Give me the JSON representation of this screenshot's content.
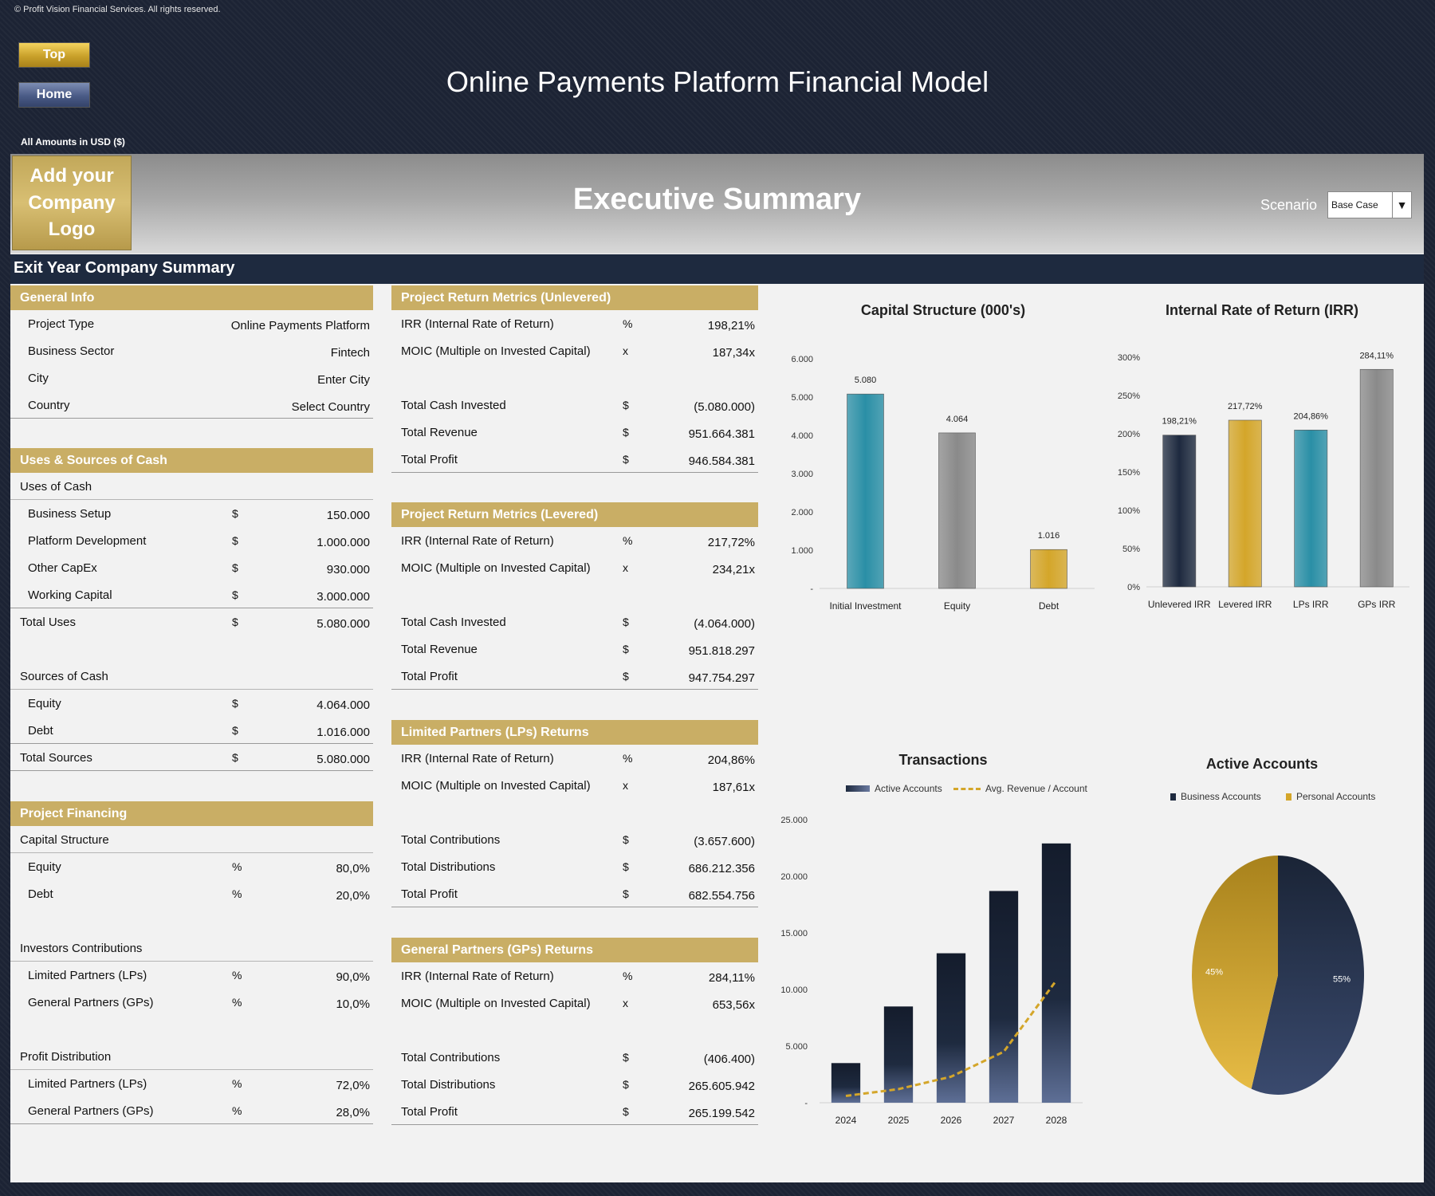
{
  "copyright": "© Profit Vision Financial Services. All rights reserved.",
  "nav": {
    "top_label": "Top",
    "home_label": "Home"
  },
  "title": "Online Payments Platform Financial Model",
  "amounts_note": "All Amounts in  USD ($)",
  "logo_text": "Add your Company Logo",
  "exec_title": "Executive Summary",
  "scenario": {
    "label": "Scenario",
    "value": "Base Case"
  },
  "exit_bar": "Exit Year Company Summary",
  "general_info": {
    "header": "General Info",
    "rows": [
      {
        "label": "Project Type",
        "value": "Online Payments Platform"
      },
      {
        "label": "Business Sector",
        "value": "Fintech"
      },
      {
        "label": "City",
        "value": "Enter City"
      },
      {
        "label": "Country",
        "value": "Select Country"
      }
    ]
  },
  "uses_sources": {
    "header": "Uses & Sources of Cash",
    "uses_title": "Uses of Cash",
    "uses": [
      {
        "label": "Business Setup",
        "unit": "$",
        "value": "150.000"
      },
      {
        "label": "Platform Development",
        "unit": "$",
        "value": "1.000.000"
      },
      {
        "label": "Other CapEx",
        "unit": "$",
        "value": "930.000"
      },
      {
        "label": "Working Capital",
        "unit": "$",
        "value": "3.000.000"
      }
    ],
    "total_uses": {
      "label": "Total Uses",
      "unit": "$",
      "value": "5.080.000"
    },
    "sources_title": "Sources of Cash",
    "sources": [
      {
        "label": "Equity",
        "unit": "$",
        "value": "4.064.000"
      },
      {
        "label": "Debt",
        "unit": "$",
        "value": "1.016.000"
      }
    ],
    "total_sources": {
      "label": "Total Sources",
      "unit": "$",
      "value": "5.080.000"
    }
  },
  "project_financing": {
    "header": "Project Financing",
    "cap_title": "Capital Structure",
    "cap": [
      {
        "label": "Equity",
        "unit": "%",
        "value": "80,0%"
      },
      {
        "label": "Debt",
        "unit": "%",
        "value": "20,0%"
      }
    ],
    "inv_title": "Investors Contributions",
    "inv": [
      {
        "label": "Limited Partners (LPs)",
        "unit": "%",
        "value": "90,0%"
      },
      {
        "label": "General Partners (GPs)",
        "unit": "%",
        "value": "10,0%"
      }
    ],
    "profit_title": "Profit Distribution",
    "profit": [
      {
        "label": "Limited Partners (LPs)",
        "unit": "%",
        "value": "72,0%"
      },
      {
        "label": "General Partners (GPs)",
        "unit": "%",
        "value": "28,0%"
      }
    ]
  },
  "unlevered": {
    "header": "Project Return Metrics (Unlevered)",
    "irr": {
      "label": "IRR (Internal Rate of Return)",
      "unit": "%",
      "value": "198,21%"
    },
    "moic": {
      "label": "MOIC (Multiple on Invested Capital)",
      "unit": "x",
      "value": "187,34x"
    },
    "r1": {
      "label": "Total Cash Invested",
      "unit": "$",
      "value": "(5.080.000)"
    },
    "r2": {
      "label": "Total Revenue",
      "unit": "$",
      "value": "951.664.381"
    },
    "r3": {
      "label": "Total Profit",
      "unit": "$",
      "value": "946.584.381"
    }
  },
  "levered": {
    "header": "Project Return Metrics (Levered)",
    "irr": {
      "label": "IRR (Internal Rate of Return)",
      "unit": "%",
      "value": "217,72%"
    },
    "moic": {
      "label": "MOIC (Multiple on Invested Capital)",
      "unit": "x",
      "value": "234,21x"
    },
    "r1": {
      "label": "Total Cash Invested",
      "unit": "$",
      "value": "(4.064.000)"
    },
    "r2": {
      "label": "Total Revenue",
      "unit": "$",
      "value": "951.818.297"
    },
    "r3": {
      "label": "Total Profit",
      "unit": "$",
      "value": "947.754.297"
    }
  },
  "lps": {
    "header": "Limited Partners (LPs) Returns",
    "irr": {
      "label": "IRR (Internal Rate of Return)",
      "unit": "%",
      "value": "204,86%"
    },
    "moic": {
      "label": "MOIC (Multiple on Invested Capital)",
      "unit": "x",
      "value": "187,61x"
    },
    "r1": {
      "label": "Total Contributions",
      "unit": "$",
      "value": "(3.657.600)"
    },
    "r2": {
      "label": "Total Distributions",
      "unit": "$",
      "value": "686.212.356"
    },
    "r3": {
      "label": "Total Profit",
      "unit": "$",
      "value": "682.554.756"
    }
  },
  "gps": {
    "header": "General Partners (GPs) Returns",
    "irr": {
      "label": "IRR (Internal Rate of Return)",
      "unit": "%",
      "value": "284,11%"
    },
    "moic": {
      "label": "MOIC (Multiple on Invested Capital)",
      "unit": "x",
      "value": "653,56x"
    },
    "r1": {
      "label": "Total Contributions",
      "unit": "$",
      "value": "(406.400)"
    },
    "r2": {
      "label": "Total Distributions",
      "unit": "$",
      "value": "265.605.942"
    },
    "r3": {
      "label": "Total Profit",
      "unit": "$",
      "value": "265.199.542"
    }
  },
  "chart_data": [
    {
      "type": "bar",
      "title": "Capital Structure (000's)",
      "categories": [
        "Initial Investment",
        "Equity",
        "Debt"
      ],
      "values": [
        5080,
        4064,
        1016
      ],
      "data_labels": [
        "5.080",
        "4.064",
        "1.016"
      ],
      "yticks": [
        "-",
        "1.000",
        "2.000",
        "3.000",
        "4.000",
        "5.000",
        "6.000"
      ],
      "ylim": [
        0,
        6000
      ],
      "colors": [
        "#2a8fa6",
        "#8a8a8a",
        "#d4a62a"
      ]
    },
    {
      "type": "bar",
      "title": "Internal Rate of Return (IRR)",
      "categories": [
        "Unlevered IRR",
        "Levered IRR",
        "LPs IRR",
        "GPs IRR"
      ],
      "values": [
        198.21,
        217.72,
        204.86,
        284.11
      ],
      "data_labels": [
        "198,21%",
        "217,72%",
        "204,86%",
        "284,11%"
      ],
      "yticks": [
        "0%",
        "50%",
        "100%",
        "150%",
        "200%",
        "250%",
        "300%"
      ],
      "ylim": [
        0,
        300
      ],
      "colors": [
        "#1e2a3f",
        "#d4a62a",
        "#2a8fa6",
        "#8a8a8a"
      ]
    },
    {
      "type": "bar",
      "title": "Transactions",
      "categories": [
        "2024",
        "2025",
        "2026",
        "2027",
        "2028"
      ],
      "series": [
        {
          "name": "Active Accounts",
          "values": [
            3500,
            8500,
            13200,
            18700,
            22900
          ]
        },
        {
          "name": "Avg. Revenue / Account",
          "values": [
            600,
            1200,
            2300,
            4500,
            10800
          ]
        }
      ],
      "yticks": [
        "-",
        "5.000",
        "10.000",
        "15.000",
        "20.000",
        "25.000"
      ],
      "ylim": [
        0,
        25000
      ],
      "colors": [
        "#1e2a3f",
        "#d4a62a"
      ]
    },
    {
      "type": "pie",
      "title": "Active Accounts",
      "labels": [
        "Business Accounts",
        "Personal Accounts"
      ],
      "values": [
        55,
        45
      ],
      "data_labels": [
        "55%",
        "45%"
      ],
      "colors": [
        "#1e2a3f",
        "#d4a62a"
      ]
    }
  ]
}
